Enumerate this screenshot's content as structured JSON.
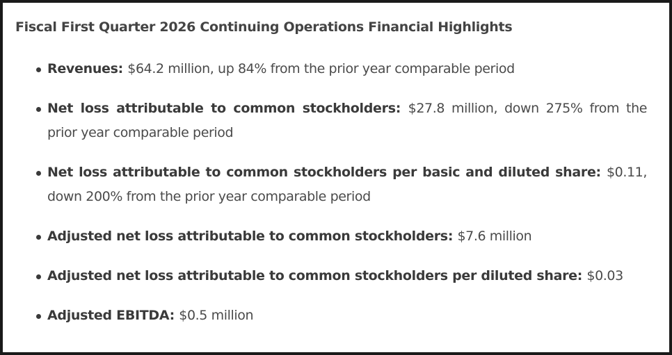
{
  "heading": "Fiscal First Quarter 2026 Continuing Operations Financial Highlights",
  "highlights": [
    {
      "label": "Revenues:",
      "text": "$64.2 million, up 84% from the prior year comparable period"
    },
    {
      "label": "Net loss attributable to common stockholders:",
      "text": "$27.8 million, down 275% from the prior year comparable period"
    },
    {
      "label": "Net loss attributable to common stockholders per basic and diluted share:",
      "text": "$0.11, down 200% from the prior year comparable period"
    },
    {
      "label": "Adjusted net loss attributable to common stockholders:",
      "text": "$7.6 million"
    },
    {
      "label": "Adjusted net loss attributable to common stockholders per diluted share:",
      "text": "$0.03"
    },
    {
      "label": "Adjusted EBITDA:",
      "text": "$0.5 million"
    }
  ]
}
